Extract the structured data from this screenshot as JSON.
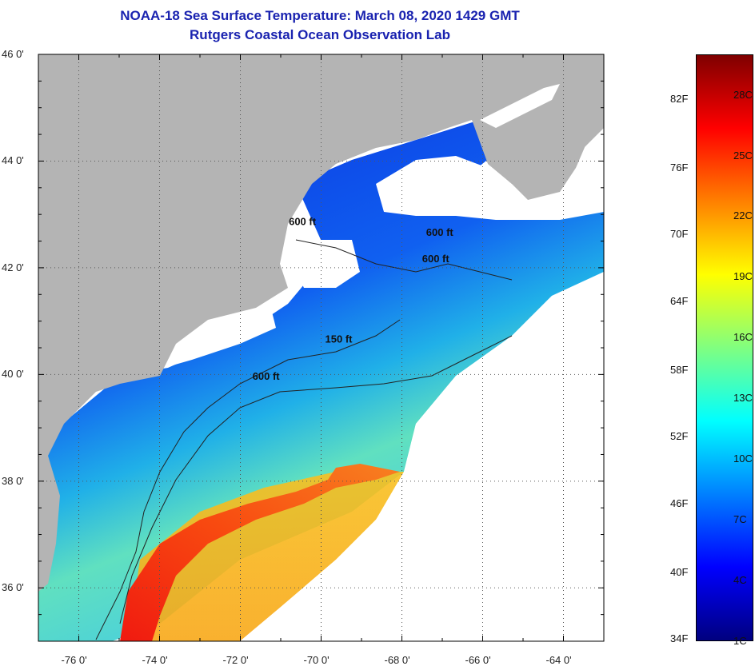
{
  "title": "NOAA-18 Sea Surface Temperature:  March 08, 2020 1429 GMT",
  "subtitle": "Rutgers Coastal Ocean Observation Lab",
  "map": {
    "lon_range": [
      -77,
      -63
    ],
    "lat_range": [
      35,
      46
    ],
    "lon_ticks": [
      {
        "value": -76,
        "label": "-76 0'"
      },
      {
        "value": -74,
        "label": "-74 0'"
      },
      {
        "value": -72,
        "label": "-72 0'"
      },
      {
        "value": -70,
        "label": "-70 0'"
      },
      {
        "value": -68,
        "label": "-68 0'"
      },
      {
        "value": -66,
        "label": "-66 0'"
      },
      {
        "value": -64,
        "label": "-64 0'"
      }
    ],
    "lat_ticks": [
      {
        "value": 46,
        "label": "46 0'"
      },
      {
        "value": 44,
        "label": "44 0'"
      },
      {
        "value": 42,
        "label": "42 0'"
      },
      {
        "value": 40,
        "label": "40 0'"
      },
      {
        "value": 38,
        "label": "38 0'"
      },
      {
        "value": 36,
        "label": "36 0'"
      }
    ],
    "grid": true,
    "depth_contour_labels": [
      {
        "text": "600 ft",
        "lon": -70.8,
        "lat": 42.8
      },
      {
        "text": "600 ft",
        "lon": -67.4,
        "lat": 42.6
      },
      {
        "text": "600 ft",
        "lon": -67.5,
        "lat": 42.1
      },
      {
        "text": "150 ft",
        "lon": -69.9,
        "lat": 40.6
      },
      {
        "text": "600 ft",
        "lon": -71.7,
        "lat": 39.9
      }
    ],
    "colors": {
      "land": "#b4b4b4",
      "cloud": "#ffffff",
      "contour": "#222222"
    }
  },
  "colorbar": {
    "f_labels": [
      {
        "label": "82F",
        "value_c": 27.8
      },
      {
        "label": "76F",
        "value_c": 24.4
      },
      {
        "label": "70F",
        "value_c": 21.1
      },
      {
        "label": "64F",
        "value_c": 17.8
      },
      {
        "label": "58F",
        "value_c": 14.4
      },
      {
        "label": "52F",
        "value_c": 11.1
      },
      {
        "label": "46F",
        "value_c": 7.8
      },
      {
        "label": "40F",
        "value_c": 4.4
      },
      {
        "label": "34F",
        "value_c": 1.1
      }
    ],
    "c_labels": [
      {
        "label": "28C",
        "value_c": 28
      },
      {
        "label": "25C",
        "value_c": 25
      },
      {
        "label": "22C",
        "value_c": 22
      },
      {
        "label": "19C",
        "value_c": 19
      },
      {
        "label": "16C",
        "value_c": 16
      },
      {
        "label": "13C",
        "value_c": 13
      },
      {
        "label": "10C",
        "value_c": 10
      },
      {
        "label": "7C",
        "value_c": 7
      },
      {
        "label": "4C",
        "value_c": 4
      },
      {
        "label": "1C",
        "value_c": 1
      }
    ],
    "range_c": [
      1,
      30
    ],
    "gradient": [
      "#00007f",
      "#0000ff",
      "#0080ff",
      "#00ffff",
      "#80ff80",
      "#ffff00",
      "#ff8000",
      "#ff0000",
      "#7f0000"
    ]
  }
}
